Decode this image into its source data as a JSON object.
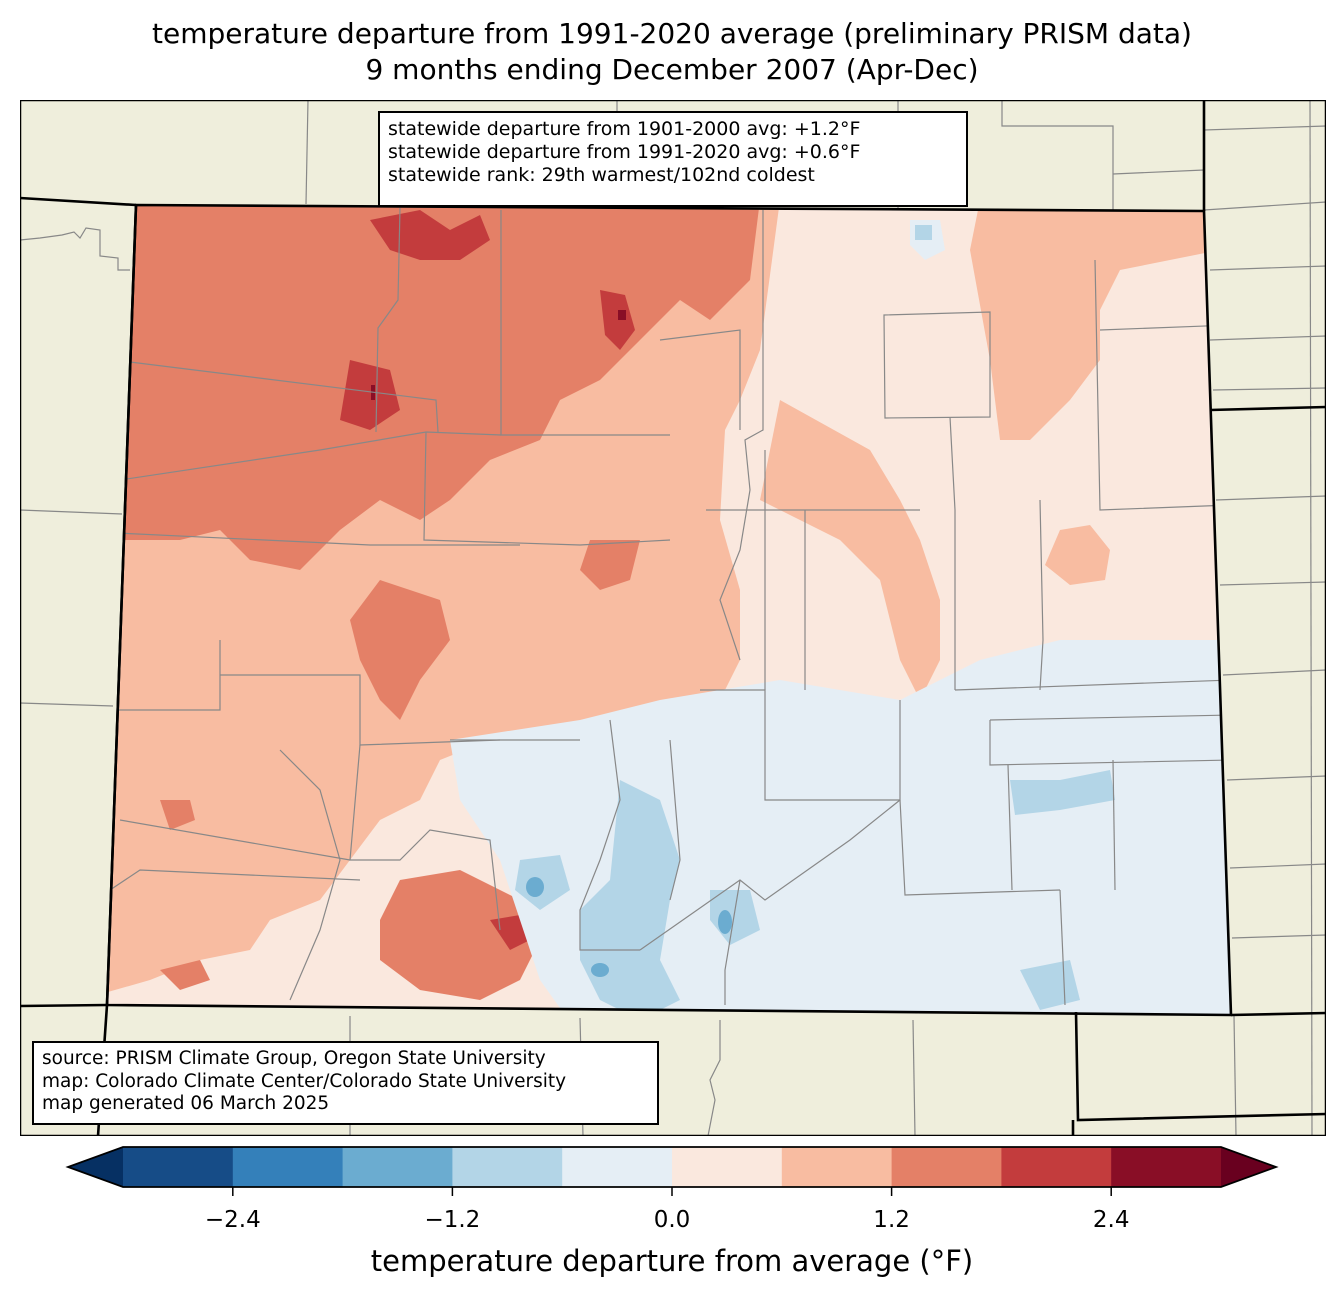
{
  "title": {
    "line1": "temperature departure from 1991-2020 average (preliminary PRISM data)",
    "line2": "9 months ending December 2007 (Apr-Dec)"
  },
  "stats_box": {
    "line1": "statewide departure from 1901-2000 avg: +1.2°F",
    "line2": "statewide departure from 1991-2020 avg: +0.6°F",
    "line3": "statewide rank: 29th warmest/102nd coldest"
  },
  "source_box": {
    "line1": "source: PRISM Climate Group, Oregon State University",
    "line2": "map: Colorado Climate Center/Colorado State University",
    "line3": "map generated 06 March 2025"
  },
  "colorbar": {
    "label": "temperature departure from average (°F)",
    "ticks": [
      "−2.4",
      "−1.2",
      "0.0",
      "1.2",
      "2.4"
    ],
    "tick_values": [
      -2.4,
      -1.2,
      0.0,
      1.2,
      2.4
    ],
    "bounds": [
      -3.0,
      -2.4,
      -1.8,
      -1.2,
      -0.6,
      0.0,
      0.6,
      1.2,
      1.8,
      2.4,
      3.0
    ],
    "colors": [
      "#164c87",
      "#3480ba",
      "#6bacd0",
      "#b3d5e7",
      "#e5eef5",
      "#fae8de",
      "#f8bca1",
      "#e48067",
      "#c33c3d",
      "#890e26"
    ],
    "under_color": "#063063",
    "over_color": "#69001f"
  },
  "map_colors": {
    "land": "#efeedc",
    "state_border": "#000000",
    "county_border": "#888888"
  }
}
